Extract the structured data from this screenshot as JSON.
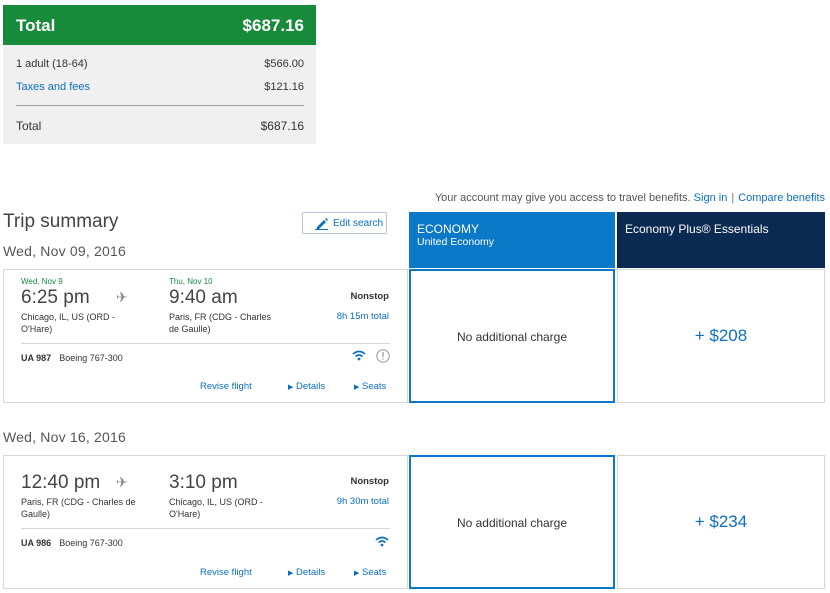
{
  "price_summary": {
    "header_label": "Total",
    "header_value": "$687.16",
    "rows": [
      {
        "label": "1 adult (18-64)",
        "value": "$566.00"
      },
      {
        "label": "Taxes and fees",
        "value": "$121.16"
      }
    ],
    "total_label": "Total",
    "total_value": "$687.16"
  },
  "notice": {
    "text": "Your account may give you access to travel benefits.",
    "sign_in": "Sign in",
    "separator": "|",
    "compare": "Compare benefits"
  },
  "trip": {
    "title": "Trip summary",
    "edit_label": "Edit search",
    "date1": "Wed, Nov 09, 2016",
    "date2": "Wed, Nov 16, 2016"
  },
  "fare_headers": {
    "economy_title": "ECONOMY",
    "economy_sub": "United Economy",
    "plus_title": "Economy Plus® Essentials"
  },
  "flights": [
    {
      "dep_date": "Wed, Nov 9",
      "arr_date": "Thu, Nov 10",
      "dep_time": "6:25 pm",
      "arr_time": "9:40 am",
      "dep_city": "Chicago, IL, US (ORD - O'Hare)",
      "arr_city": "Paris, FR (CDG - Charles de Gaulle)",
      "stops": "Nonstop",
      "duration": "8h 15m total",
      "flight_no": "UA 987",
      "aircraft": "Boeing 767-300",
      "revise": "Revise flight",
      "details": "Details",
      "seats": "Seats",
      "economy_price": "No additional charge",
      "plus_price": "+ $208"
    },
    {
      "dep_date": "",
      "arr_date": "",
      "dep_time": "12:40 pm",
      "arr_time": "3:10 pm",
      "dep_city": "Paris, FR (CDG - Charles de Gaulle)",
      "arr_city": "Chicago, IL, US (ORD - O'Hare)",
      "stops": "Nonstop",
      "duration": "9h 30m total",
      "flight_no": "UA 986",
      "aircraft": "Boeing 767-300",
      "revise": "Revise flight",
      "details": "Details",
      "seats": "Seats",
      "economy_price": "No additional charge",
      "plus_price": "+ $234"
    }
  ]
}
